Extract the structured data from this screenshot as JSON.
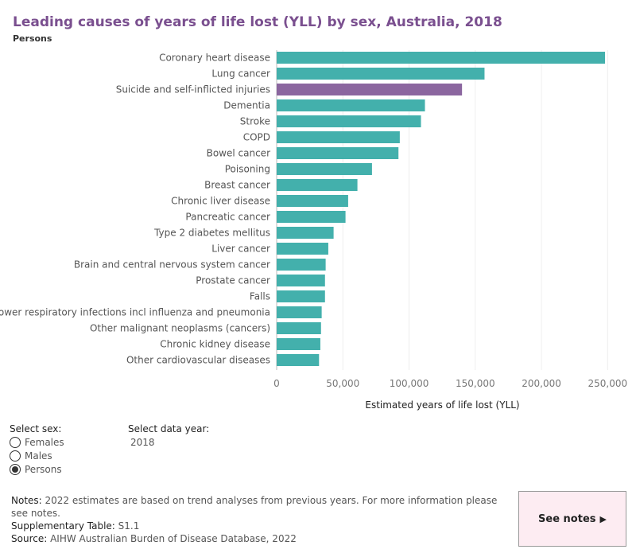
{
  "header": {
    "title": "Leading causes of years of life lost (YLL) by sex, Australia, 2018",
    "subtitle": "Persons"
  },
  "chart_data": {
    "type": "bar",
    "orientation": "horizontal",
    "xlabel": "Estimated years of life lost (YLL)",
    "xlim": [
      0,
      260000
    ],
    "xticks": [
      0,
      50000,
      100000,
      150000,
      200000,
      250000
    ],
    "xtick_labels": [
      "0",
      "50,000",
      "100,000",
      "150,000",
      "200,000",
      "250,000"
    ],
    "grid": "vertical",
    "bar_color": "#43b0ac",
    "highlight_color": "#8b669f",
    "highlight_category": "Suicide and self-inflicted injuries",
    "categories": [
      "Coronary heart disease",
      "Lung cancer",
      "Suicide and self-inflicted injuries",
      "Dementia",
      "Stroke",
      "COPD",
      "Bowel cancer",
      "Poisoning",
      "Breast cancer",
      "Chronic liver disease",
      "Pancreatic cancer",
      "Type 2 diabetes mellitus",
      "Liver cancer",
      "Brain and central nervous system cancer",
      "Prostate cancer",
      "Falls",
      "Lower respiratory infections incl influenza and pneumonia",
      "Other malignant neoplasms (cancers)",
      "Chronic kidney disease",
      "Other cardiovascular diseases"
    ],
    "values": [
      248000,
      157000,
      140000,
      112000,
      109000,
      93000,
      92000,
      72000,
      61000,
      54000,
      52000,
      43000,
      39000,
      37000,
      36500,
      36500,
      34000,
      33500,
      33000,
      32000
    ]
  },
  "controls": {
    "sex_label": "Select sex:",
    "sex_options": [
      {
        "label": "Females",
        "selected": false
      },
      {
        "label": "Males",
        "selected": false
      },
      {
        "label": "Persons",
        "selected": true
      }
    ],
    "year_label": "Select data year:",
    "year_value": "2018"
  },
  "footer": {
    "notes_key": "Notes:",
    "notes_text": "2022 estimates are based on trend analyses from previous years. For more information please see notes.",
    "supp_key": "Supplementary Table:",
    "supp_text": "S1.1",
    "source_key": "Source:",
    "source_text": "AIHW Australian Burden of Disease Database, 2022",
    "see_notes_label": "See notes",
    "see_notes_arrow": "▶"
  }
}
